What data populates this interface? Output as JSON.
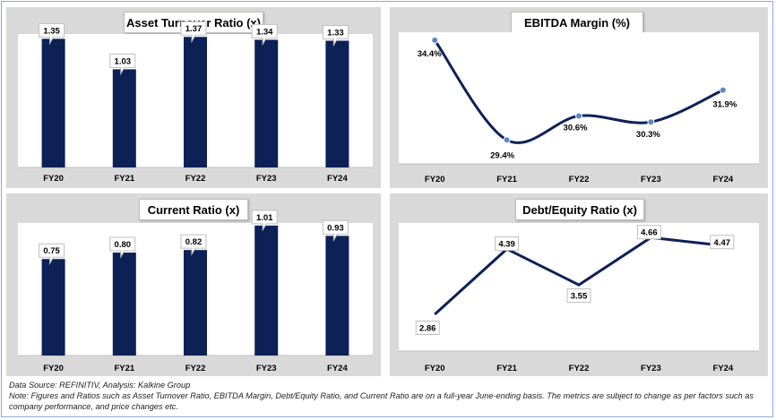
{
  "colors": {
    "bar": "#0d2157",
    "line": "#0d2157",
    "marker": "#5b87c8",
    "panel_bg": "#d9d9d9",
    "plot_bg": "#ffffff",
    "axis": "#bfbfbf"
  },
  "footer": {
    "source": "Data Source: REFINITIV, Analysis: Kalkine Group",
    "note": "Note: Figures and Ratios such as Asset Turnover Ratio, EBITDA Margin, Debt/Equity Ratio, and Current Ratio  are on a full-year June-ending basis. The metrics are subject to change as per factors such as company performance, and price changes etc."
  },
  "chart_data": [
    {
      "id": "asset-turnover",
      "type": "bar",
      "title": "Asset Turnover Ratio (x)",
      "categories": [
        "FY20",
        "FY21",
        "FY22",
        "FY23",
        "FY24"
      ],
      "values": [
        1.35,
        1.03,
        1.37,
        1.34,
        1.33
      ],
      "labels": [
        "1.35",
        "1.03",
        "1.37",
        "1.34",
        "1.33"
      ],
      "ylim": [
        0,
        1.4
      ],
      "grid": false,
      "legend": "none"
    },
    {
      "id": "ebitda-margin",
      "type": "line",
      "title": "EBITDA Margin (%)",
      "categories": [
        "FY20",
        "FY21",
        "FY22",
        "FY23",
        "FY24"
      ],
      "values": [
        34.4,
        29.4,
        30.6,
        30.3,
        31.9
      ],
      "labels": [
        "34.4%",
        "29.4%",
        "30.6%",
        "30.3%",
        "31.9%"
      ],
      "ylim": [
        28.2,
        34.8
      ],
      "smooth": true,
      "markers": true,
      "grid": false,
      "legend": "none"
    },
    {
      "id": "current-ratio",
      "type": "bar",
      "title": "Current Ratio (x)",
      "categories": [
        "FY20",
        "FY21",
        "FY22",
        "FY23",
        "FY24"
      ],
      "values": [
        0.75,
        0.8,
        0.82,
        1.01,
        0.93
      ],
      "labels": [
        "0.75",
        "0.80",
        "0.82",
        "1.01",
        "0.93"
      ],
      "ylim": [
        0,
        1.03
      ],
      "grid": false,
      "legend": "none"
    },
    {
      "id": "debt-equity",
      "type": "line",
      "title": "Debt/Equity Ratio (x)",
      "categories": [
        "FY20",
        "FY21",
        "FY22",
        "FY23",
        "FY24"
      ],
      "values": [
        2.86,
        4.39,
        3.55,
        4.66,
        4.47
      ],
      "labels": [
        "2.86",
        "4.39",
        "3.55",
        "4.66",
        "4.47"
      ],
      "ylim": [
        2.0,
        5.0
      ],
      "smooth": false,
      "markers": false,
      "grid": false,
      "legend": "none"
    }
  ]
}
